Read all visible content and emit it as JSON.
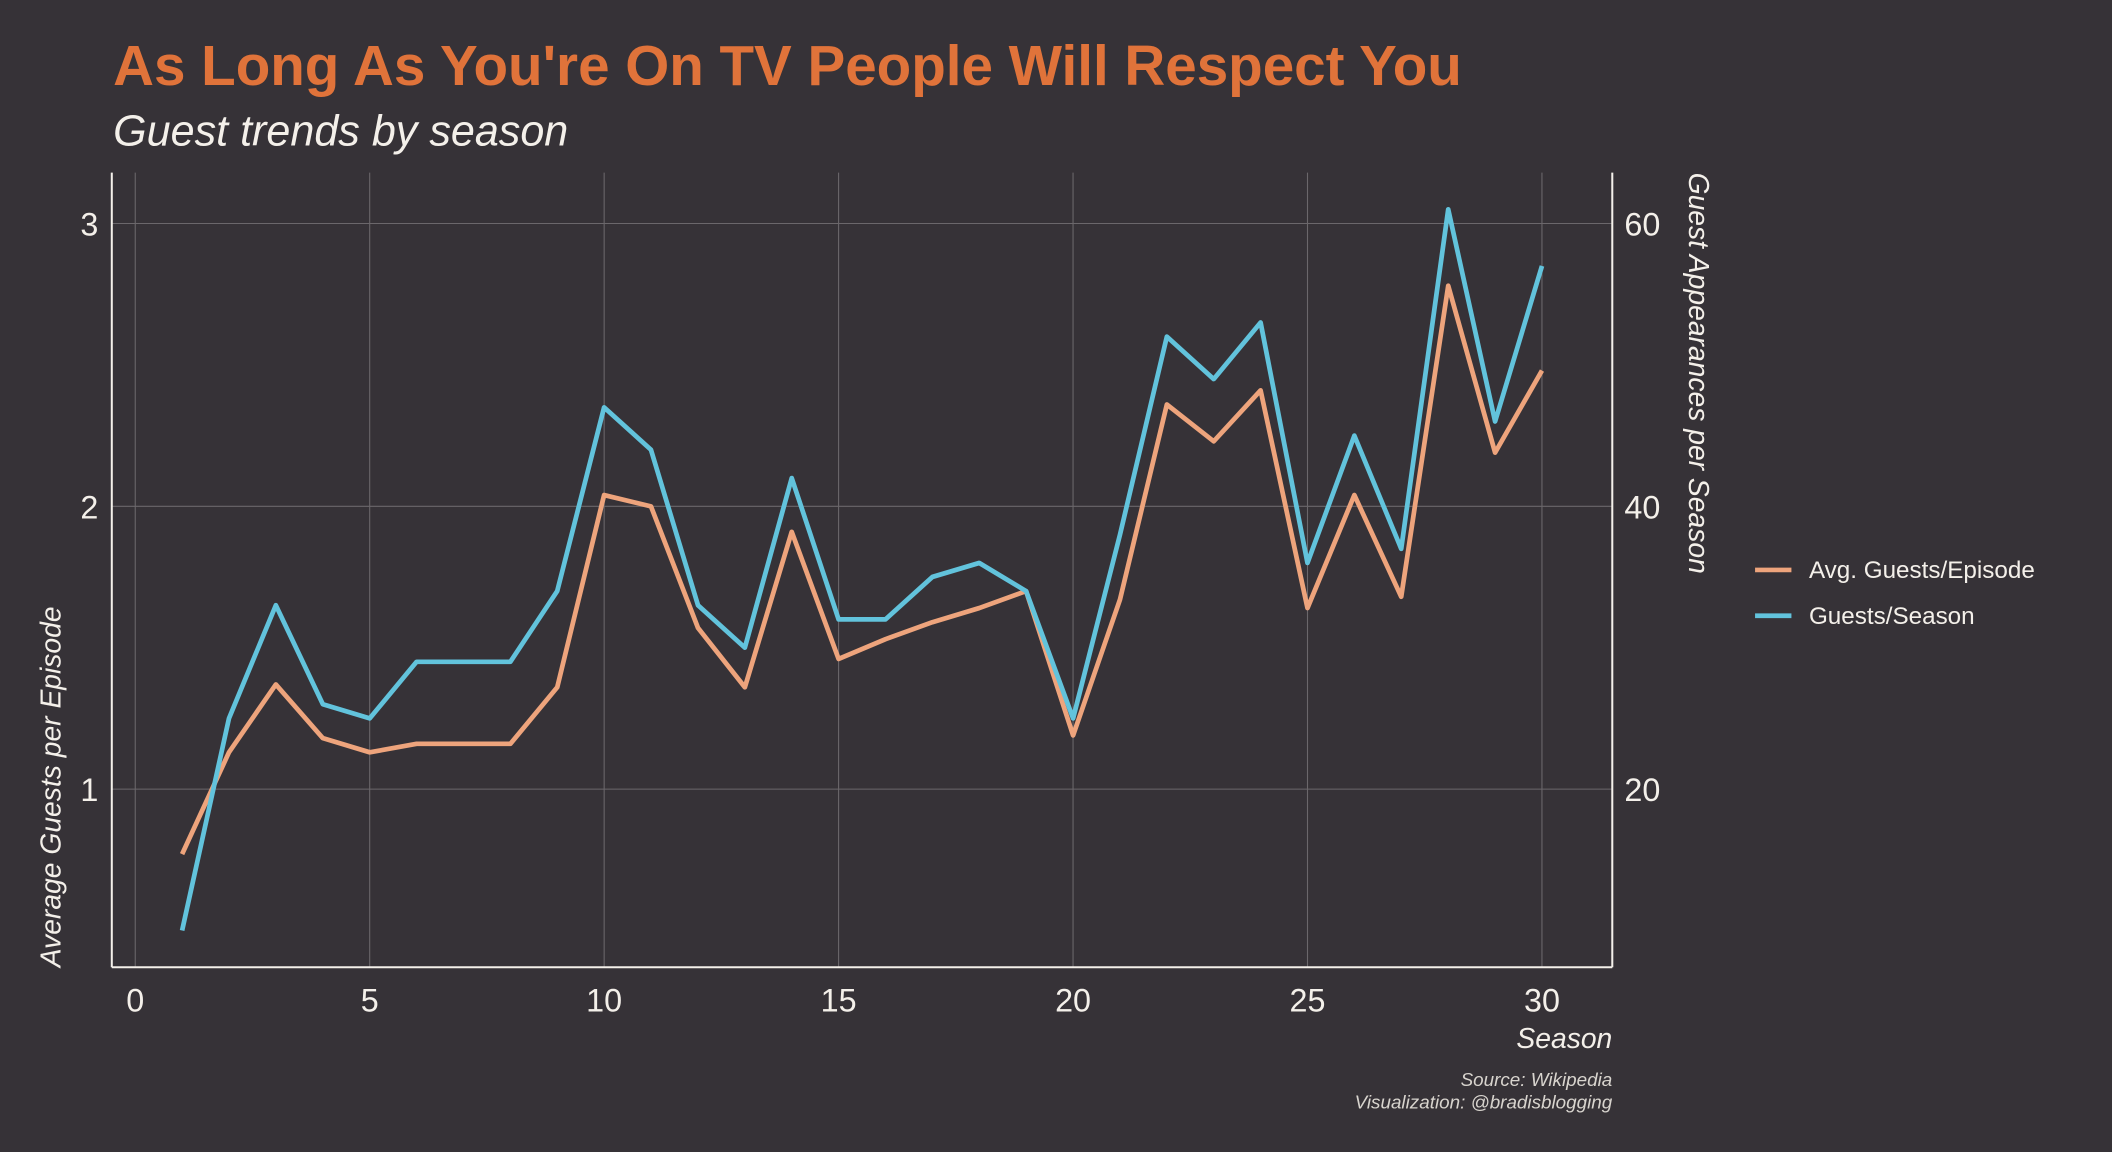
{
  "chart_data": {
    "type": "line",
    "title": "As Long As You're On TV People Will Respect You",
    "subtitle": "Guest trends by season",
    "xlabel": "Season",
    "ylabel_left": "Average Guests per Episode",
    "ylabel_right": "Guest Appearances per Season",
    "xlim": [
      -0.5,
      31.5
    ],
    "ylim_left": [
      0.37,
      3.18
    ],
    "ylim_right": [
      7.4,
      63.6
    ],
    "x_ticks": [
      0,
      5,
      10,
      15,
      20,
      25,
      30
    ],
    "y_ticks_left": [
      1,
      2,
      3
    ],
    "y_ticks_right": [
      20,
      40,
      60
    ],
    "grid": true,
    "legend_position": "right",
    "x": [
      1,
      2,
      3,
      4,
      5,
      6,
      7,
      8,
      9,
      10,
      11,
      12,
      13,
      14,
      15,
      16,
      17,
      18,
      19,
      20,
      21,
      22,
      23,
      24,
      25,
      26,
      27,
      28,
      29,
      30
    ],
    "series": [
      {
        "name": "Avg. Guests/Episode",
        "axis": "left",
        "color": "#eea47c",
        "values": [
          0.77,
          1.13,
          1.37,
          1.18,
          1.13,
          1.16,
          1.16,
          1.16,
          1.36,
          2.04,
          2.0,
          1.57,
          1.36,
          1.91,
          1.46,
          1.53,
          1.59,
          1.64,
          1.7,
          1.19,
          1.67,
          2.36,
          2.23,
          2.41,
          1.64,
          2.04,
          1.68,
          2.78,
          2.19,
          2.48
        ]
      },
      {
        "name": "Guests/Season",
        "axis": "right",
        "color": "#62c3dc",
        "values": [
          10,
          25,
          33,
          26,
          25,
          29,
          29,
          29,
          34,
          47,
          44,
          33,
          30,
          42,
          32,
          32,
          35,
          36,
          34,
          25,
          38,
          52,
          49,
          53,
          36,
          45,
          37,
          61,
          46,
          57
        ]
      }
    ],
    "source": "Source: Wikipedia",
    "credit": "Visualization: @bradisblogging"
  }
}
